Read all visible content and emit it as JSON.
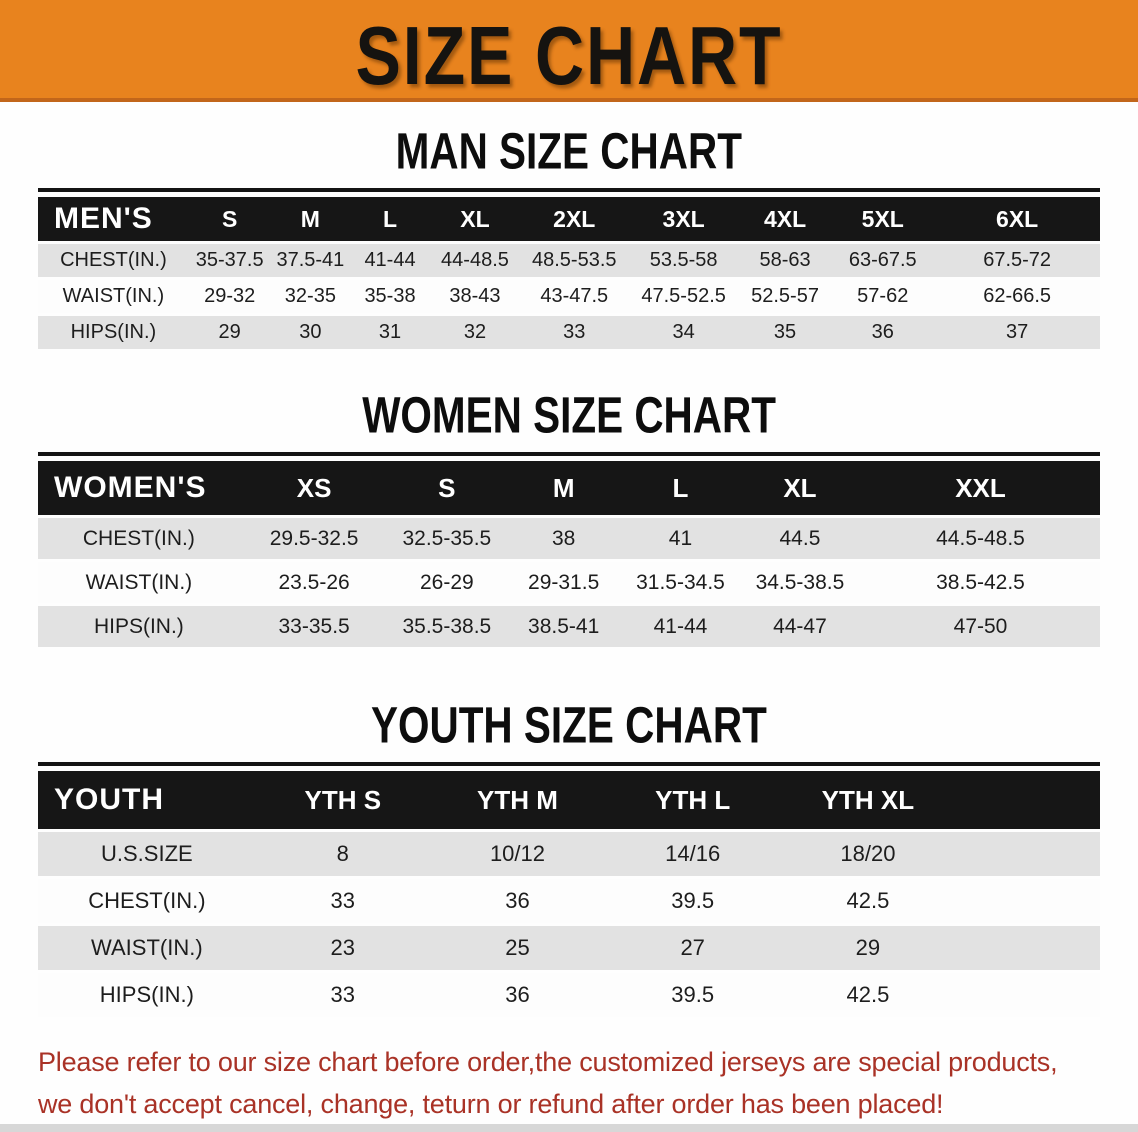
{
  "banner": {
    "title": "SIZE CHART"
  },
  "colors": {
    "banner_bg": "#E8831E",
    "banner_edge": "#C2661A",
    "table_header_bg": "#161616",
    "row_gray": "#E2E2E2",
    "disclaimer_red": "#A93226"
  },
  "sections": [
    {
      "title": "MAN SIZE CHART",
      "header_label": "MEN'S",
      "columns": [
        "S",
        "M",
        "L",
        "XL",
        "2XL",
        "3XL",
        "4XL",
        "5XL",
        "6XL"
      ],
      "rows": [
        {
          "label": "CHEST(IN.)",
          "values": [
            "35-37.5",
            "37.5-41",
            "41-44",
            "44-48.5",
            "48.5-53.5",
            "53.5-58",
            "58-63",
            "63-67.5",
            "67.5-72"
          ]
        },
        {
          "label": "WAIST(IN.)",
          "values": [
            "29-32",
            "32-35",
            "35-38",
            "38-43",
            "43-47.5",
            "47.5-52.5",
            "52.5-57",
            "57-62",
            "62-66.5"
          ]
        },
        {
          "label": "HIPS(IN.)",
          "values": [
            "29",
            "30",
            "31",
            "32",
            "33",
            "34",
            "35",
            "36",
            "37"
          ]
        }
      ]
    },
    {
      "title": "WOMEN SIZE CHART",
      "header_label": "WOMEN'S",
      "columns": [
        "XS",
        "S",
        "M",
        "L",
        "XL",
        "XXL"
      ],
      "rows": [
        {
          "label": "CHEST(IN.)",
          "values": [
            "29.5-32.5",
            "32.5-35.5",
            "38",
            "41",
            "44.5",
            "44.5-48.5"
          ]
        },
        {
          "label": "WAIST(IN.)",
          "values": [
            "23.5-26",
            "26-29",
            "29-31.5",
            "31.5-34.5",
            "34.5-38.5",
            "38.5-42.5"
          ]
        },
        {
          "label": "HIPS(IN.)",
          "values": [
            "33-35.5",
            "35.5-38.5",
            "38.5-41",
            "41-44",
            "44-47",
            "47-50"
          ]
        }
      ]
    },
    {
      "title": "YOUTH SIZE CHART",
      "header_label": "YOUTH",
      "columns": [
        "YTH S",
        "YTH M",
        "YTH L",
        "YTH XL"
      ],
      "filler": true,
      "rows": [
        {
          "label": "U.S.SIZE",
          "values": [
            "8",
            "10/12",
            "14/16",
            "18/20"
          ]
        },
        {
          "label": "CHEST(IN.)",
          "values": [
            "33",
            "36",
            "39.5",
            "42.5"
          ]
        },
        {
          "label": "WAIST(IN.)",
          "values": [
            "23",
            "25",
            "27",
            "29"
          ]
        },
        {
          "label": "HIPS(IN.)",
          "values": [
            "33",
            "36",
            "39.5",
            "42.5"
          ]
        }
      ]
    }
  ],
  "disclaimer": {
    "line1": "Please refer to our size chart before order,the customized jerseys are special products,",
    "line2": "we don't accept cancel, change, teturn or refund after order has been placed!"
  }
}
